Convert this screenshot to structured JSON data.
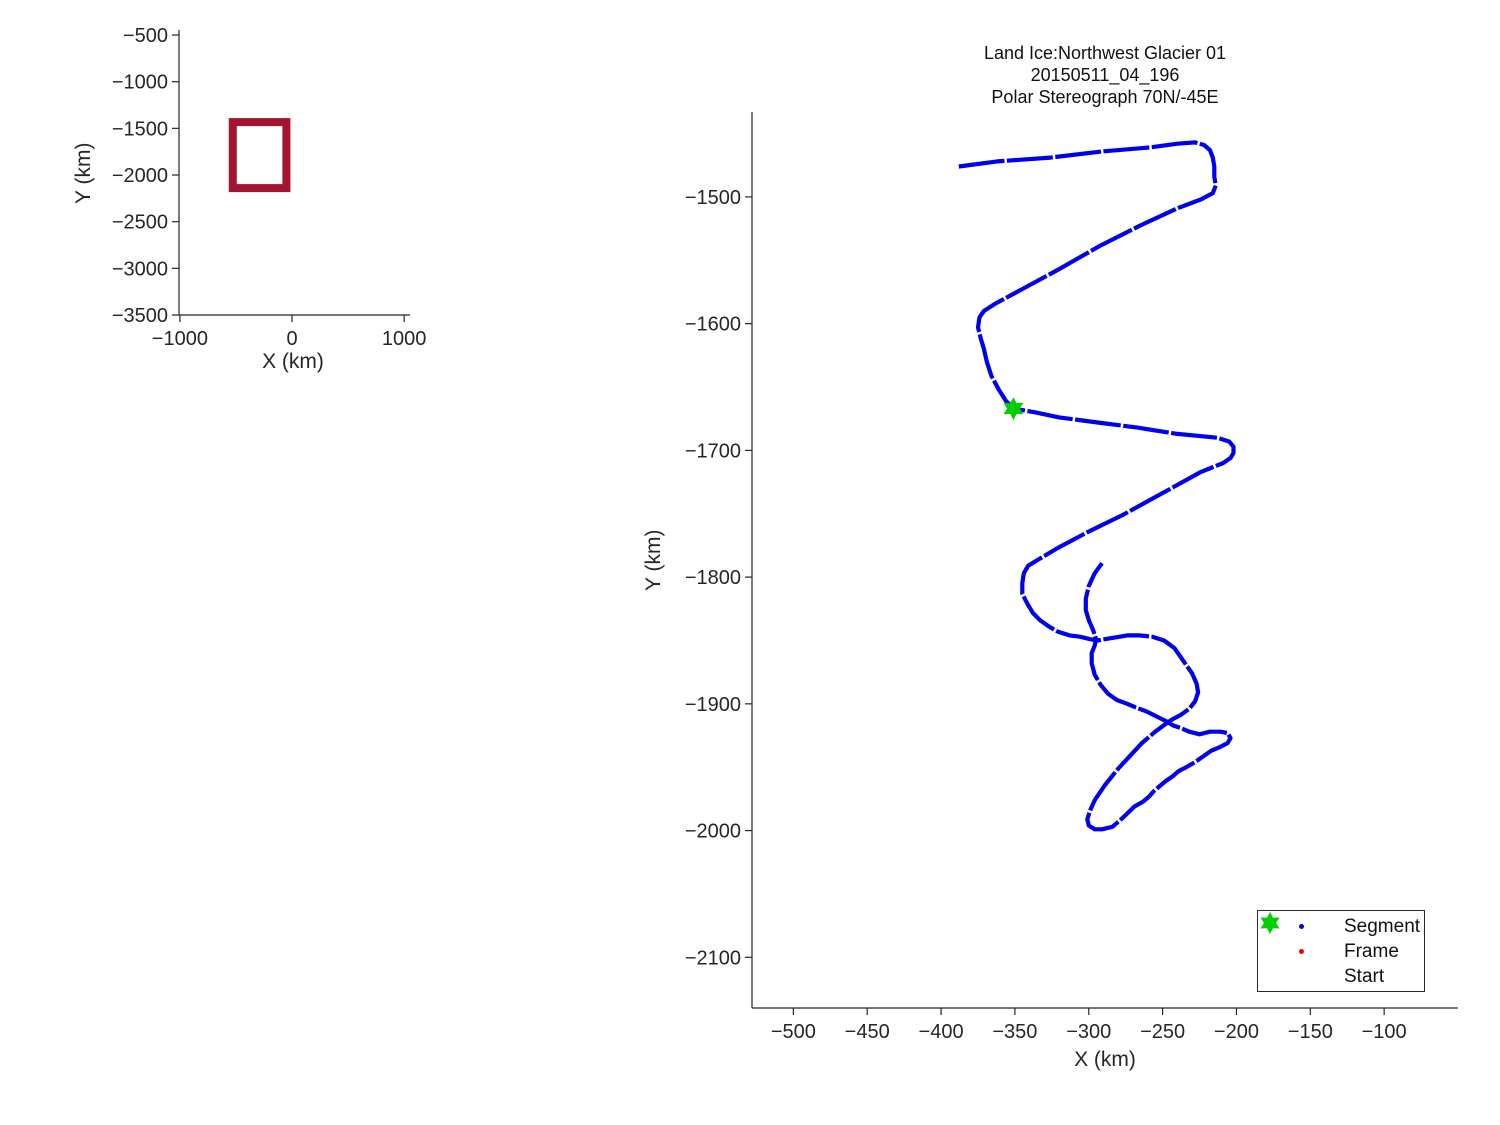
{
  "chart_data": [
    {
      "id": "overview",
      "type": "line",
      "role": "coverage-overview-map",
      "xlabel": "X (km)",
      "ylabel": "Y (km)",
      "x_ticks": [
        -1000,
        0,
        1000
      ],
      "y_ticks": [
        -500,
        -1000,
        -1500,
        -2000,
        -2500,
        -3000,
        -3500
      ],
      "x_range": [
        -1008,
        1052
      ],
      "y_range": [
        -3500,
        -446
      ],
      "grid": false,
      "bbox_rect": {
        "x_min": -528,
        "x_max": -50,
        "y_min": -2140,
        "y_max": -1433,
        "color": "#A2142F",
        "stroke_px": 8
      }
    },
    {
      "id": "flight-track",
      "type": "line",
      "title_lines": [
        "Land Ice:Northwest Glacier 01",
        "20150511_04_196",
        "Polar Stereograph 70N/-45E"
      ],
      "xlabel": "X (km)",
      "ylabel": "Y (km)",
      "x_ticks": [
        -500,
        -450,
        -400,
        -350,
        -300,
        -250,
        -200,
        -150,
        -100
      ],
      "y_ticks": [
        -1500,
        -1600,
        -1700,
        -1800,
        -1900,
        -2000,
        -2100
      ],
      "x_range": [
        -528,
        -50
      ],
      "y_range": [
        -2140,
        -1433
      ],
      "grid": false,
      "legend": {
        "position": "southeast",
        "items": [
          {
            "label": "Segment",
            "marker": "dot",
            "color": "#0000EE"
          },
          {
            "label": "Frame",
            "marker": "dot",
            "color": "#EE0000"
          },
          {
            "label": "Start",
            "marker": "hexagram",
            "color": "#00CF00"
          }
        ]
      },
      "series": [
        {
          "name": "Segment",
          "color": "#0000EE",
          "marker": "dot",
          "points": [
            [
              -388,
              -1476
            ],
            [
              -362,
              -1472
            ],
            [
              -326,
              -1469
            ],
            [
              -290,
              -1464
            ],
            [
              -259,
              -1461
            ],
            [
              -240,
              -1458
            ],
            [
              -228,
              -1457
            ],
            [
              -222,
              -1459
            ],
            [
              -218,
              -1463
            ],
            [
              -216,
              -1469
            ],
            [
              -215,
              -1476
            ],
            [
              -215,
              -1484
            ],
            [
              -214,
              -1491
            ],
            [
              -216,
              -1497
            ],
            [
              -224,
              -1502
            ],
            [
              -240,
              -1509
            ],
            [
              -266,
              -1523
            ],
            [
              -293,
              -1539
            ],
            [
              -320,
              -1557
            ],
            [
              -347,
              -1574
            ],
            [
              -363,
              -1584
            ],
            [
              -371,
              -1590
            ],
            [
              -374,
              -1595
            ],
            [
              -375,
              -1603
            ],
            [
              -373,
              -1612
            ],
            [
              -371,
              -1620
            ],
            [
              -369,
              -1630
            ],
            [
              -366,
              -1641
            ],
            [
              -361,
              -1652
            ],
            [
              -356,
              -1661
            ],
            [
              -351,
              -1667
            ],
            [
              -336,
              -1670
            ],
            [
              -320,
              -1674
            ],
            [
              -294,
              -1678
            ],
            [
              -267,
              -1682
            ],
            [
              -240,
              -1687
            ],
            [
              -213,
              -1690
            ],
            [
              -205,
              -1693
            ],
            [
              -202,
              -1697
            ],
            [
              -202,
              -1702
            ],
            [
              -204,
              -1706
            ],
            [
              -209,
              -1710
            ],
            [
              -224,
              -1717
            ],
            [
              -252,
              -1735
            ],
            [
              -277,
              -1751
            ],
            [
              -300,
              -1764
            ],
            [
              -321,
              -1777
            ],
            [
              -334,
              -1786
            ],
            [
              -341,
              -1791
            ],
            [
              -344,
              -1797
            ],
            [
              -345,
              -1805
            ],
            [
              -345,
              -1813
            ],
            [
              -342,
              -1820
            ],
            [
              -338,
              -1828
            ],
            [
              -333,
              -1834
            ],
            [
              -327,
              -1839
            ],
            [
              -321,
              -1843
            ],
            [
              -313,
              -1846
            ],
            [
              -306,
              -1847
            ],
            [
              -299,
              -1849
            ],
            [
              -294,
              -1850
            ],
            [
              -284,
              -1848
            ],
            [
              -274,
              -1846
            ],
            [
              -266,
              -1846
            ],
            [
              -257,
              -1847
            ],
            [
              -249,
              -1850
            ],
            [
              -242,
              -1856
            ],
            [
              -236,
              -1866
            ],
            [
              -230,
              -1876
            ],
            [
              -227,
              -1884
            ],
            [
              -226,
              -1891
            ],
            [
              -228,
              -1898
            ],
            [
              -232,
              -1904
            ],
            [
              -238,
              -1909
            ],
            [
              -243,
              -1912
            ],
            [
              -247,
              -1915
            ],
            [
              -255,
              -1922
            ],
            [
              -264,
              -1931
            ],
            [
              -272,
              -1941
            ],
            [
              -280,
              -1951
            ],
            [
              -289,
              -1964
            ],
            [
              -296,
              -1976
            ],
            [
              -299,
              -1984
            ],
            [
              -301,
              -1991
            ],
            [
              -300,
              -1996
            ],
            [
              -296,
              -1999
            ],
            [
              -291,
              -1999
            ],
            [
              -284,
              -1997
            ],
            [
              -277,
              -1990
            ],
            [
              -269,
              -1981
            ],
            [
              -263,
              -1977
            ],
            [
              -259,
              -1973
            ],
            [
              -256,
              -1969
            ],
            [
              -252,
              -1965
            ],
            [
              -248,
              -1961
            ],
            [
              -243,
              -1957
            ],
            [
              -239,
              -1953
            ],
            [
              -234,
              -1950
            ],
            [
              -228,
              -1946
            ],
            [
              -222,
              -1941
            ],
            [
              -217,
              -1937
            ],
            [
              -211,
              -1934
            ],
            [
              -206,
              -1931
            ],
            [
              -204,
              -1927
            ],
            [
              -206,
              -1923
            ],
            [
              -211,
              -1922
            ],
            [
              -218,
              -1922
            ],
            [
              -225,
              -1924
            ],
            [
              -232,
              -1922
            ],
            [
              -238,
              -1919
            ],
            [
              -243,
              -1917
            ],
            [
              -247,
              -1914
            ],
            [
              -254,
              -1910
            ],
            [
              -261,
              -1906
            ],
            [
              -268,
              -1903
            ],
            [
              -274,
              -1900
            ],
            [
              -281,
              -1897
            ],
            [
              -287,
              -1892
            ],
            [
              -292,
              -1885
            ],
            [
              -296,
              -1877
            ],
            [
              -298,
              -1868
            ],
            [
              -298,
              -1860
            ],
            [
              -296,
              -1854
            ],
            [
              -295,
              -1849
            ],
            [
              -297,
              -1842
            ],
            [
              -300,
              -1834
            ],
            [
              -302,
              -1826
            ],
            [
              -302,
              -1817
            ],
            [
              -300,
              -1807
            ],
            [
              -296,
              -1797
            ],
            [
              -291,
              -1789
            ]
          ]
        },
        {
          "name": "Frame",
          "color": "#EE0000",
          "marker": "dot",
          "points": []
        },
        {
          "name": "Start",
          "color": "#00CF00",
          "marker": "hexagram",
          "points": [
            [
              -351,
              -1667
            ]
          ]
        }
      ]
    }
  ],
  "text_color": "#262626"
}
